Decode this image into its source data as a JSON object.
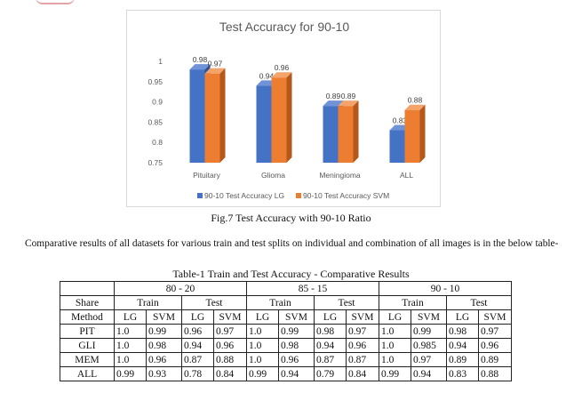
{
  "chart_data": {
    "type": "bar",
    "title": "Test Accuracy for 90-10",
    "categories": [
      "Pituitary",
      "Glioma",
      "Meningioma",
      "ALL"
    ],
    "series": [
      {
        "name": "90-10 Test Accuracy LG",
        "values": [
          0.98,
          0.94,
          0.89,
          0.83
        ],
        "color": "#4472c4"
      },
      {
        "name": "90-10 Test Accuracy SVM",
        "values": [
          0.97,
          0.96,
          0.89,
          0.88
        ],
        "color": "#ed7d31"
      }
    ],
    "value_labels": [
      [
        "0.98",
        "0.94",
        "0.89",
        "0.83"
      ],
      [
        "0.97",
        "0.96",
        "0.89",
        "0.88"
      ]
    ],
    "ylim": [
      0.75,
      1
    ],
    "yticks": [
      "0.75",
      "0.8",
      "0.85",
      "0.9",
      "0.95",
      "1"
    ],
    "xlabel": "",
    "ylabel": "",
    "legend_position": "bottom",
    "grid": false
  },
  "figure_caption": "Fig.7 Test Accuracy with 90-10 Ratio",
  "paragraph": "Comparative results of all datasets for various train and test splits on individual and combination of all images is in the below table-",
  "table": {
    "caption": "Table-1 Train and Test Accuracy - Comparative Results",
    "splits": [
      "80 - 20",
      "85 - 15",
      "90 - 10"
    ],
    "share_label": "Share",
    "method_label": "Method",
    "train_label": "Train",
    "test_label": "Test",
    "lg_label": "LG",
    "svm_label": "SVM",
    "rows": [
      {
        "name": "PIT",
        "cells": [
          "1.0",
          "0.99",
          "0.96",
          "0.97",
          "1.0",
          "0.99",
          "0.98",
          "0.97",
          "1.0",
          "0.99",
          "0.98",
          "0.97"
        ]
      },
      {
        "name": "GLI",
        "cells": [
          "1.0",
          "0.98",
          "0.94",
          "0.96",
          "1.0",
          "0.98",
          "0.94",
          "0.96",
          "1.0",
          "0.985",
          "0.94",
          "0.96"
        ]
      },
      {
        "name": "MEM",
        "cells": [
          "1.0",
          "0.96",
          "0.87",
          "0.88",
          "1.0",
          "0.96",
          "0.87",
          "0.87",
          "1.0",
          "0.97",
          "0.89",
          "0.89"
        ]
      },
      {
        "name": "ALL",
        "cells": [
          "0.99",
          "0.93",
          "0.78",
          "0.84",
          "0.99",
          "0.94",
          "0.79",
          "0.84",
          "0.99",
          "0.94",
          "0.83",
          "0.88"
        ]
      }
    ]
  }
}
